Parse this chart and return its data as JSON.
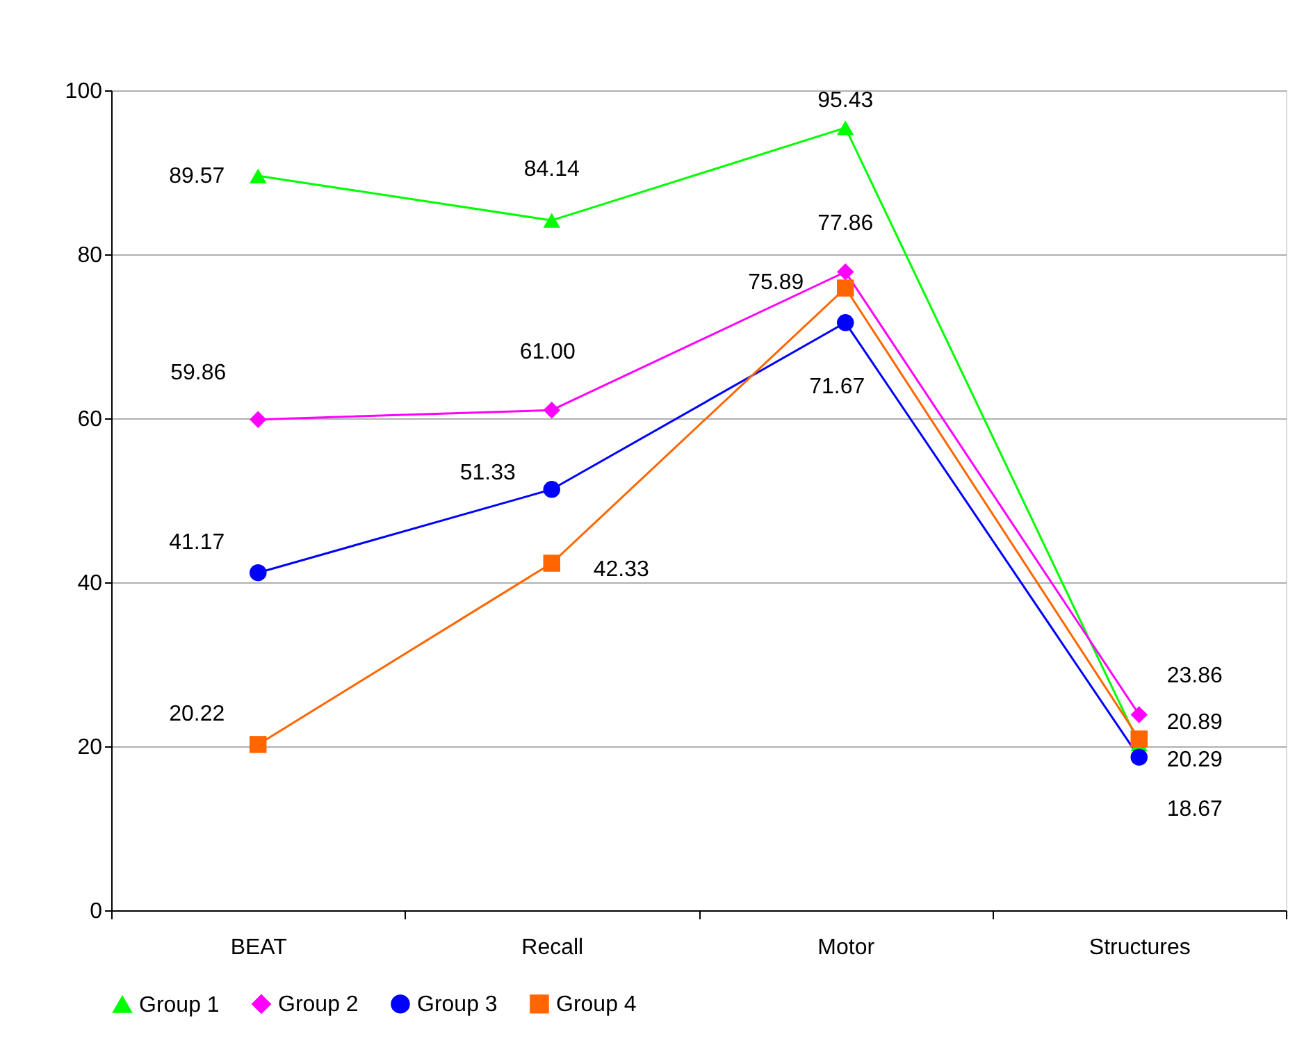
{
  "chart_data": {
    "type": "line",
    "categories": [
      "BEAT",
      "Recall",
      "Motor",
      "Structures"
    ],
    "ylim": [
      0,
      100
    ],
    "yticks": [
      0,
      20,
      40,
      60,
      80,
      100
    ],
    "grid": "y",
    "legend": "bottom",
    "line_style": "solid",
    "series": [
      {
        "name": "Group 1",
        "color": "#00ff00",
        "marker": "triangle",
        "values": [
          89.57,
          84.14,
          95.43,
          20.29
        ],
        "value_labels": [
          "89.57",
          "84.14",
          "95.43",
          "20.29"
        ]
      },
      {
        "name": "Group 2",
        "color": "#ff00ff",
        "marker": "diamond",
        "values": [
          59.86,
          61.0,
          77.86,
          23.86
        ],
        "value_labels": [
          "59.86",
          "61.00",
          "77.86",
          "23.86"
        ]
      },
      {
        "name": "Group 3",
        "color": "#0000ff",
        "marker": "circle",
        "values": [
          41.17,
          51.33,
          71.67,
          18.67
        ],
        "value_labels": [
          "41.17",
          "51.33",
          "71.67",
          "18.67"
        ]
      },
      {
        "name": "Group 4",
        "color": "#ff6600",
        "marker": "square",
        "values": [
          20.22,
          42.33,
          75.89,
          20.89
        ],
        "value_labels": [
          "20.22",
          "42.33",
          "75.89",
          "20.89"
        ]
      }
    ]
  }
}
